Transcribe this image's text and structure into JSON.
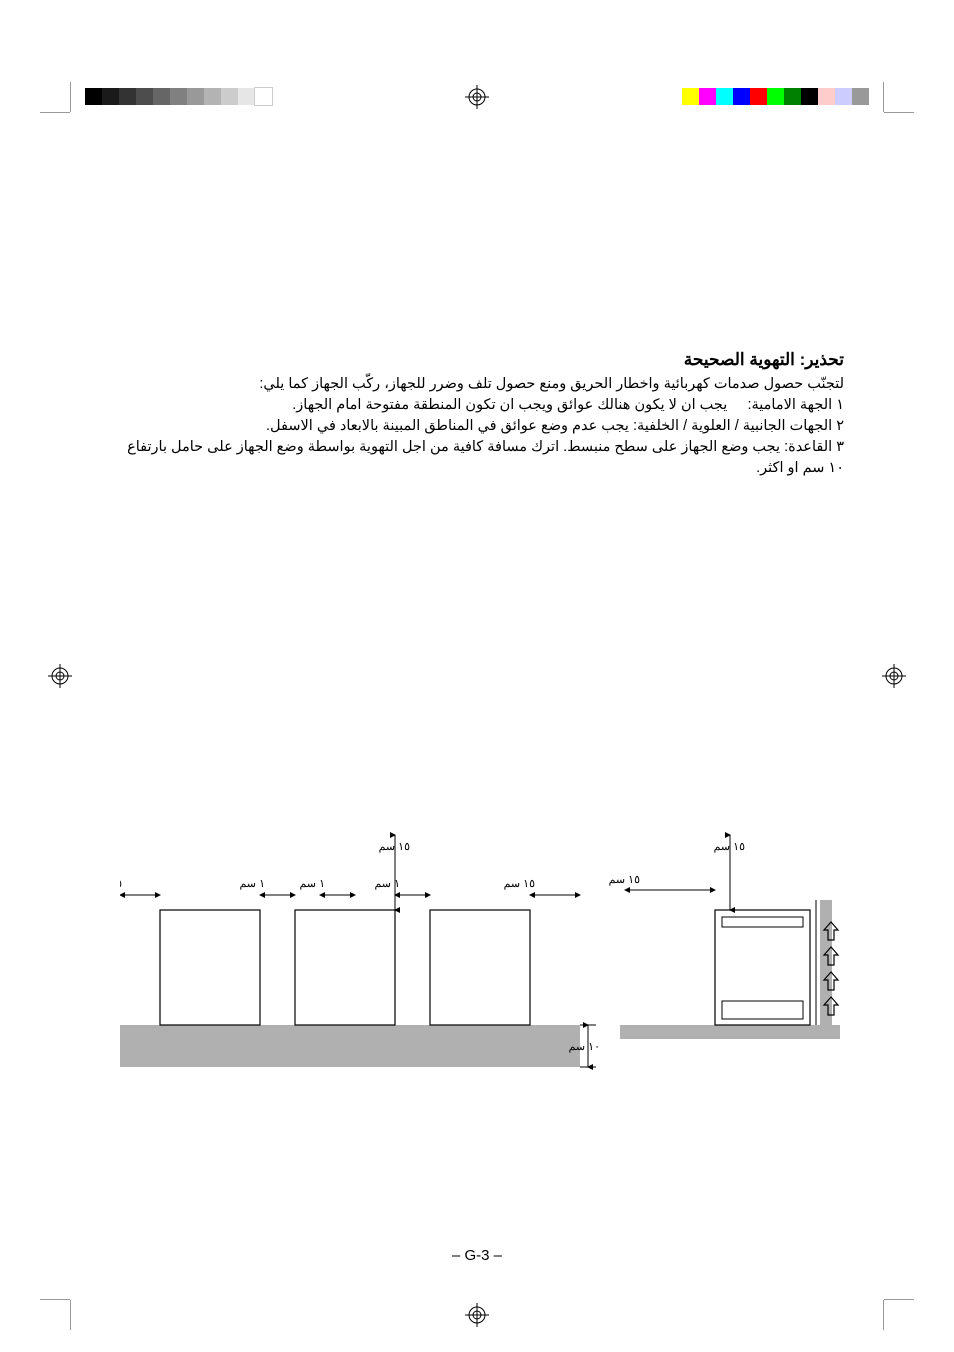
{
  "title_prefix": "تحذير:",
  "title_main": "التهوية الصحيحة",
  "intro": "لتجنّب حصول صدمات كهربائية واخطار الحريق ومنع حصول تلف وضرر للجهاز، ركّب الجهاز كما يلي:",
  "line1_label": "١ الجهة الامامية:",
  "line1_text": "يجب ان لا يكون هنالك عوائق ويجب ان تكون المنطقة مفتوحة امام الجهاز.",
  "line2": "٢ الجهات الجانبية / العلوية / الخلفية: يجب عدم وضع عوائق في المناطق المبينة بالابعاد في الاسفل.",
  "line3": "٣ القاعدة: يجب وضع الجهاز على سطح منبسط. اترك مسافة كافية من اجل التهوية بواسطة وضع الجهاز على حامل بارتفاع ١٠ سم او اكثر.",
  "page_number": "– G-3 –",
  "dims": {
    "d15": "١٥ سم",
    "d1": "١ سم",
    "d10": "١٠ سم"
  },
  "colorbar_left": [
    "#000000",
    "#1a1a1a",
    "#333333",
    "#4d4d4d",
    "#666666",
    "#808080",
    "#999999",
    "#b3b3b3",
    "#cccccc",
    "#e6e6e6",
    "#ffffff"
  ],
  "colorbar_right": [
    "#ffff00",
    "#ff00ff",
    "#00ffff",
    "#0000ff",
    "#ff0000",
    "#00ff00",
    "#008000",
    "#000000",
    "#ffcccc",
    "#ccccff",
    "#999999"
  ],
  "diagram": {
    "base_color": "#b0b0b0",
    "unit_fill": "#ffffff",
    "unit_stroke": "#000000"
  }
}
